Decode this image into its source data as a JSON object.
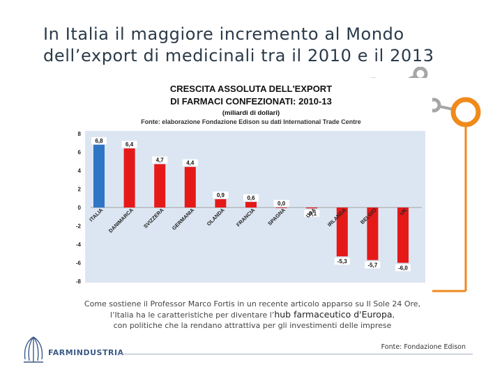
{
  "slide": {
    "title_line1": "In Italia il maggiore incremento al Mondo",
    "title_line2": "dell’export di medicinali tra il 2010 e il 2013"
  },
  "caption": {
    "line1": "Come sostiene il Professor Marco Fortis in un recente articolo apparso su Il Sole 24 Ore,",
    "line2_prefix": "l’Italia ha le caratteristiche per diventare l’",
    "line2_highlight": "hub farmaceutico d'Europa",
    "line2_suffix": ",",
    "line3": "con politiche che la rendano attrattiva per gli investimenti delle imprese"
  },
  "footer": {
    "logo_text": "FARMINDUSTRIA",
    "source": "Fonte: Fondazione Edison"
  },
  "colors": {
    "accent_orange": "#f08a1c",
    "deco_gray": "#a6a6a6",
    "bar_highlight": "#2e75c6",
    "bar_default": "#e61919",
    "plot_bg": "#dce6f2"
  },
  "chart_data": {
    "type": "bar",
    "title_line1": "CRESCITA ASSOLUTA DELL'EXPORT",
    "title_line2": "DI FARMACI CONFEZIONATI: 2010-13",
    "subtitle": "(miliardi di dollari)",
    "source": "Fonte: elaborazione Fondazione Edison su dati International Trade Centre",
    "categories": [
      "ITALIA",
      "DANIMARCA",
      "SVIZZERA",
      "GERMANIA",
      "OLANDA",
      "FRANCIA",
      "SPAGNA",
      "USA",
      "IRLANDA",
      "BELGIO",
      "UK"
    ],
    "values": [
      6.8,
      6.4,
      4.7,
      4.4,
      0.9,
      0.6,
      0.0,
      -0.1,
      -5.3,
      -5.7,
      -6.0
    ],
    "value_labels": [
      "6,8",
      "6,4",
      "4,7",
      "4,4",
      "0,9",
      "0,6",
      "0,0",
      "-0,1",
      "-5,3",
      "-5,7",
      "-6,0"
    ],
    "highlight_index": 0,
    "ylim": [
      -8,
      8
    ],
    "yticks": [
      8,
      6,
      4,
      2,
      0,
      -2,
      -4,
      -6,
      -8
    ],
    "xlabel": "",
    "ylabel": ""
  }
}
